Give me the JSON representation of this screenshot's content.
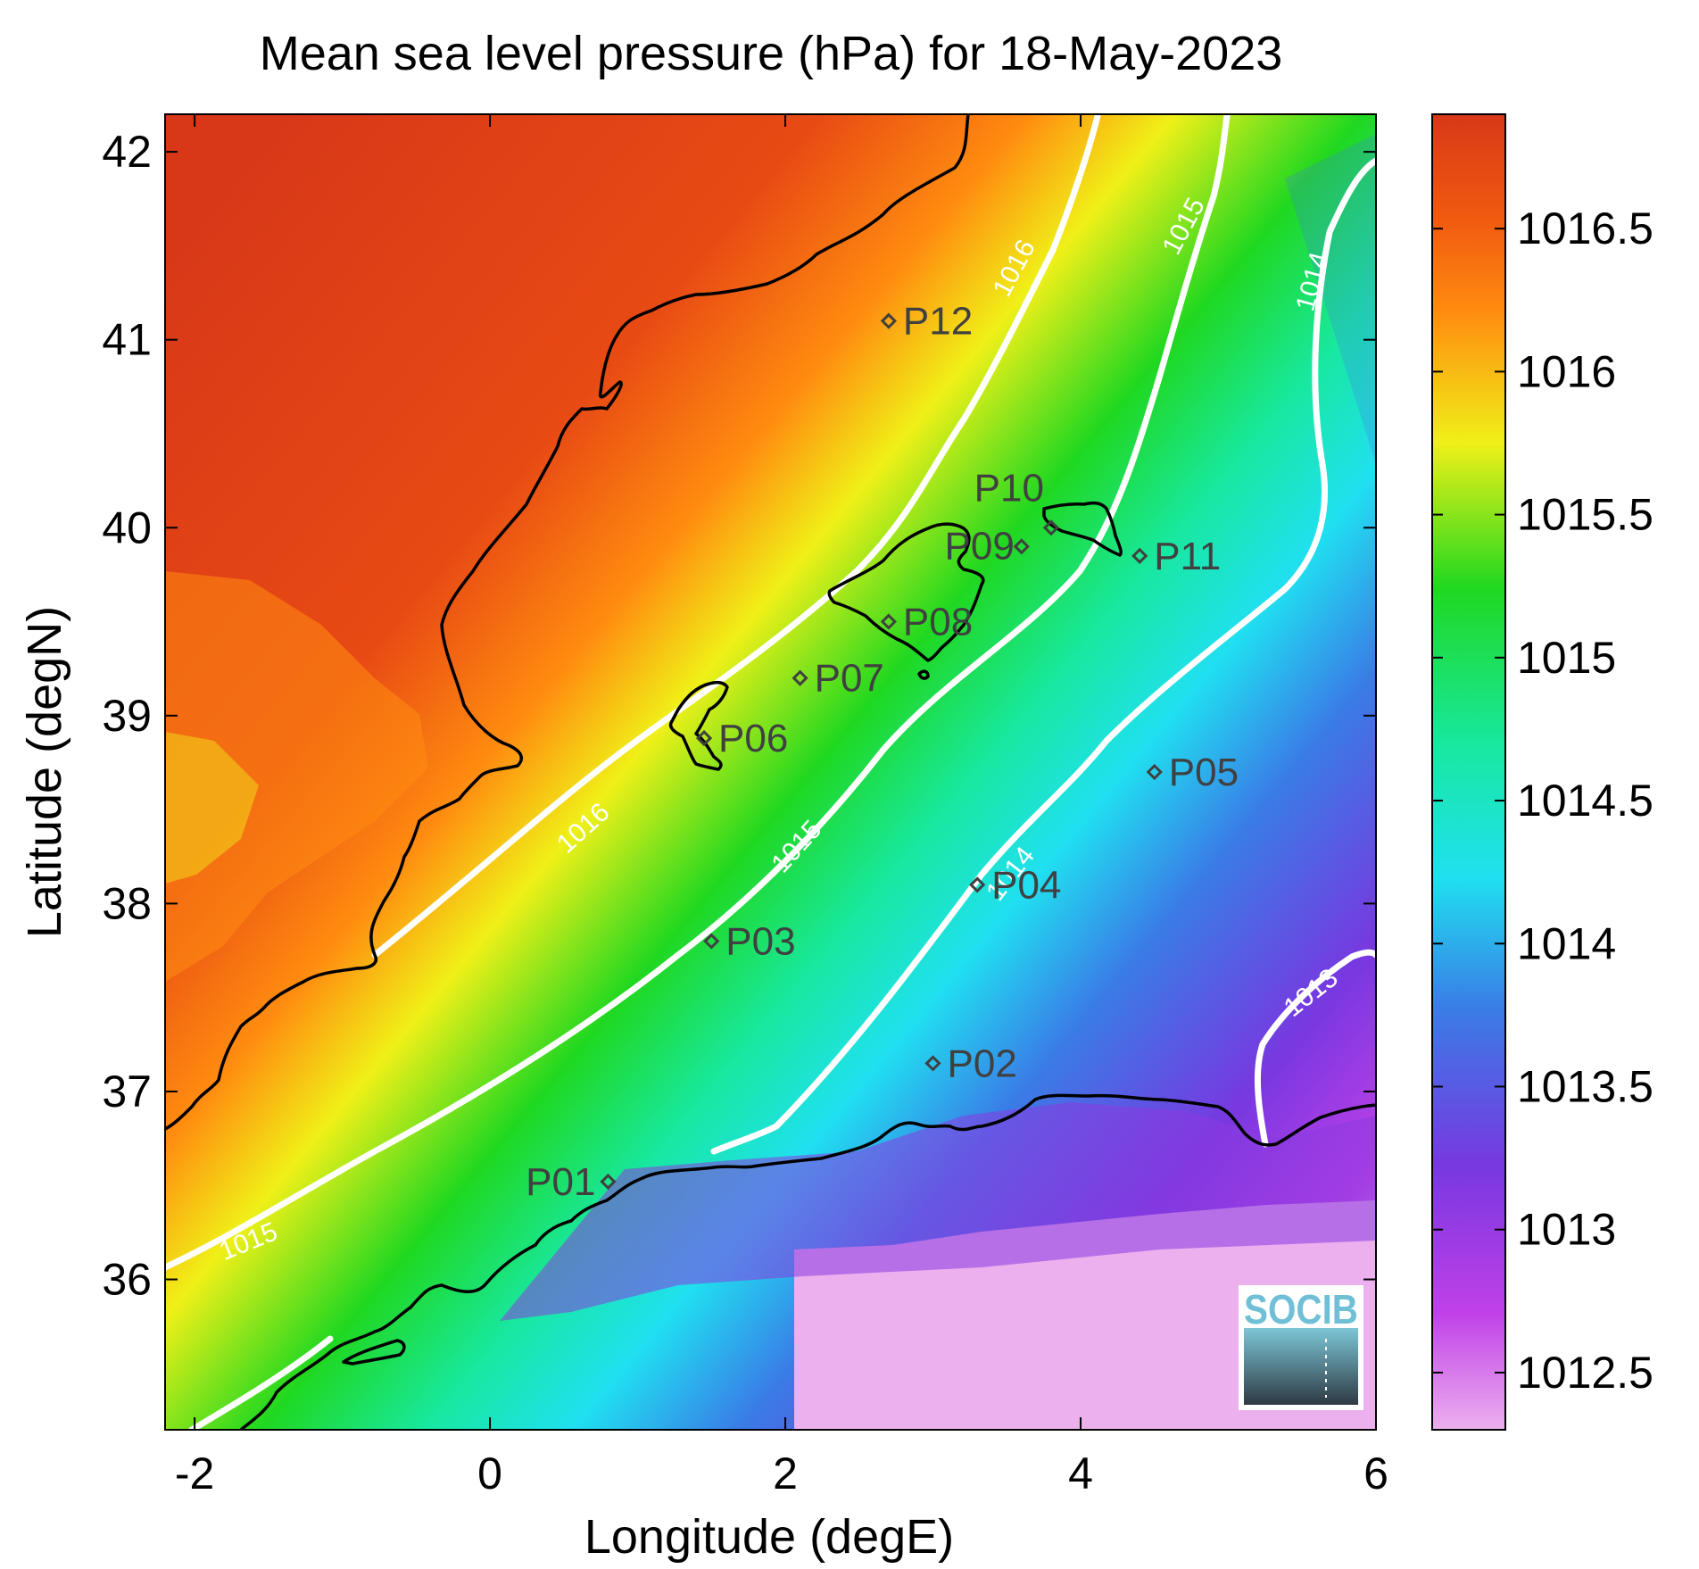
{
  "chart_data": {
    "type": "heatmap",
    "title": "Mean sea level pressure (hPa) for 18-May-2023",
    "xlabel": "Longitude (degE)",
    "ylabel": "Latitude (degN)",
    "xlim": [
      -2.2,
      6.0
    ],
    "ylim": [
      35.2,
      42.2
    ],
    "x_ticks": [
      -2,
      0,
      2,
      4,
      6
    ],
    "x_tick_labels": [
      "-2",
      "0",
      "2",
      "4",
      "6"
    ],
    "y_ticks": [
      36,
      37,
      38,
      39,
      40,
      41,
      42
    ],
    "y_tick_labels": [
      "36",
      "37",
      "38",
      "39",
      "40",
      "41",
      "42"
    ],
    "colorbar": {
      "range": [
        1012.3,
        1016.9
      ],
      "ticks": [
        1012.5,
        1013,
        1013.5,
        1014,
        1014.5,
        1015,
        1015.5,
        1016,
        1016.5
      ],
      "tick_labels": [
        "1012.5",
        "1013",
        "1013.5",
        "1014",
        "1014.5",
        "1015",
        "1015.5",
        "1016",
        "1016.5"
      ],
      "colors": [
        "#ecb0ee",
        "#c040e8",
        "#7838e0",
        "#3a7ce6",
        "#20e0f0",
        "#18e8a0",
        "#20d820",
        "#f0f018",
        "#ff8c10",
        "#d83818"
      ]
    },
    "contour_labels": [
      {
        "text": "1016"
      },
      {
        "text": "1016"
      },
      {
        "text": "1015"
      },
      {
        "text": "1015"
      },
      {
        "text": "1015"
      },
      {
        "text": "1014"
      },
      {
        "text": "1014"
      },
      {
        "text": "1013"
      }
    ],
    "stations": [
      {
        "name": "P01",
        "lon": 0.8,
        "lat": 36.52
      },
      {
        "name": "P02",
        "lon": 3.0,
        "lat": 37.15
      },
      {
        "name": "P03",
        "lon": 1.5,
        "lat": 37.8
      },
      {
        "name": "P04",
        "lon": 3.3,
        "lat": 38.1
      },
      {
        "name": "P05",
        "lon": 4.5,
        "lat": 38.7
      },
      {
        "name": "P06",
        "lon": 1.45,
        "lat": 38.88
      },
      {
        "name": "P07",
        "lon": 2.1,
        "lat": 39.2
      },
      {
        "name": "P08",
        "lon": 2.7,
        "lat": 39.5
      },
      {
        "name": "P09",
        "lon": 3.6,
        "lat": 39.9
      },
      {
        "name": "P10",
        "lon": 3.8,
        "lat": 40.0
      },
      {
        "name": "P11",
        "lon": 4.4,
        "lat": 39.85
      },
      {
        "name": "P12",
        "lon": 2.7,
        "lat": 41.1
      }
    ],
    "grid": false,
    "colors": {
      "coastline": "#000000",
      "contour": "#ffffff",
      "station": "#404040"
    }
  },
  "logo": {
    "text": "SOCIB"
  }
}
